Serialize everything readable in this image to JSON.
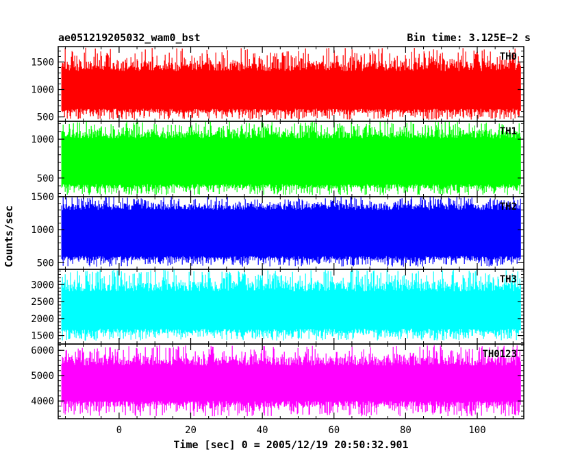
{
  "header": {
    "title": "ae051219205032_wam0_bst",
    "bin_time": "Bin time: 3.125E−2 s"
  },
  "chart_data": {
    "type": "line",
    "xlabel": "Time [sec] 0 = 2005/12/19 20:50:32.901",
    "ylabel": "Counts/sec",
    "xlim": [
      -17,
      113
    ],
    "x_range": [
      -16,
      112
    ],
    "bin_time": 0.03125,
    "x_ticks": [
      0,
      20,
      40,
      60,
      80,
      100
    ],
    "panels": [
      {
        "name": "TH0",
        "color": "#ff0000",
        "ylim": [
          420,
          1780
        ],
        "y_ticks": [
          500,
          1000,
          1500
        ],
        "band": [
          650,
          1330
        ],
        "spread": [
          450,
          1760
        ],
        "values": [
          1000,
          990,
          1010,
          995,
          1005,
          1000,
          998,
          1002
        ]
      },
      {
        "name": "TH1",
        "color": "#00ff00",
        "ylim": [
          260,
          1230
        ],
        "y_ticks": [
          500,
          1000
        ],
        "band": [
          420,
          1010
        ],
        "spread": [
          280,
          1230
        ],
        "values": [
          720,
          715,
          725,
          718,
          722,
          720,
          719,
          721
        ]
      },
      {
        "name": "TH2",
        "color": "#0000ff",
        "ylim": [
          400,
          1500
        ],
        "y_ticks": [
          500,
          1000,
          1500
        ],
        "band": [
          600,
          1300
        ],
        "spread": [
          440,
          1500
        ],
        "values": [
          950,
          945,
          955,
          948,
          952,
          950,
          949,
          951
        ]
      },
      {
        "name": "TH3",
        "color": "#00ffff",
        "ylim": [
          1250,
          3450
        ],
        "y_ticks": [
          1500,
          2000,
          2500,
          3000
        ],
        "band": [
          1700,
          2800
        ],
        "spread": [
          1350,
          3450
        ],
        "values": [
          2250,
          2240,
          2260,
          2245,
          2255,
          2250,
          2248,
          2252
        ]
      },
      {
        "name": "TH0123",
        "color": "#ff00ff",
        "ylim": [
          3300,
          6250
        ],
        "y_ticks": [
          4000,
          5000,
          6000
        ],
        "band": [
          4000,
          5400
        ],
        "spread": [
          3400,
          6200
        ],
        "values": [
          4700,
          4690,
          4710,
          4695,
          4705,
          4700,
          4698,
          4702
        ]
      }
    ]
  }
}
